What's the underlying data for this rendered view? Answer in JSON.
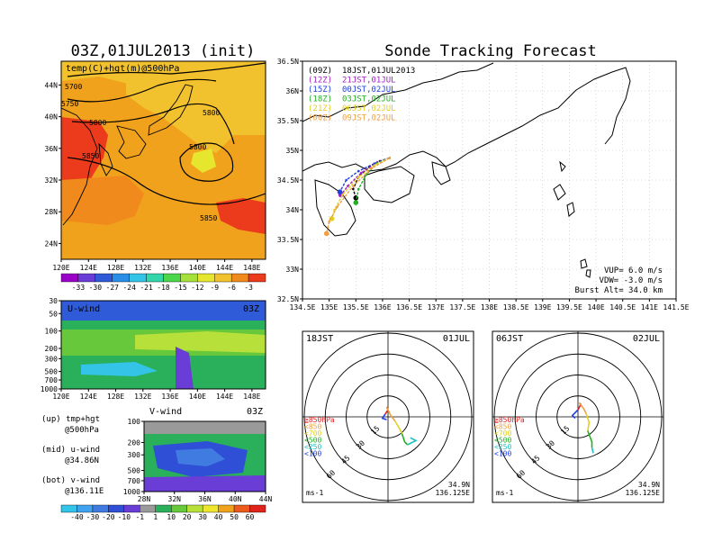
{
  "main_title": "Sonde Tracking Forecast",
  "map_panel": {
    "title": "03Z,01JUL2013 (init)",
    "subtitle": "temp(C)+hgt(m)@500hPa",
    "x_ticks": [
      "120E",
      "124E",
      "128E",
      "132E",
      "136E",
      "140E",
      "144E",
      "148E"
    ],
    "y_ticks": [
      "24N",
      "28N",
      "32N",
      "36N",
      "40N",
      "44N"
    ],
    "contour_labels": [
      "5700",
      "5750",
      "5800",
      "5800",
      "5800",
      "5850",
      "5850"
    ],
    "colorbar_labels": [
      "-33",
      "-30",
      "-27",
      "-24",
      "-21",
      "-18",
      "-15",
      "-12",
      "-9",
      "-6",
      "-3"
    ],
    "colorbar_colors": [
      "#9b00c8",
      "#6a3dd6",
      "#2f5bd8",
      "#2a8ee6",
      "#33c4e8",
      "#33d6a8",
      "#4cd64c",
      "#a6e03a",
      "#e6e62e",
      "#f2c12e",
      "#f08a1c",
      "#ec3a1c"
    ]
  },
  "uwind_panel": {
    "label": "U-wind",
    "time": "03Z",
    "y_ticks": [
      "30",
      "50",
      "100",
      "200",
      "300",
      "500",
      "700",
      "1000"
    ],
    "x_ticks": [
      "120E",
      "124E",
      "128E",
      "132E",
      "136E",
      "140E",
      "144E",
      "148E"
    ]
  },
  "vwind_panel": {
    "label": "V-wind",
    "time": "03Z",
    "y_ticks": [
      "100",
      "200",
      "300",
      "500",
      "700",
      "1000"
    ],
    "x_ticks": [
      "28N",
      "32N",
      "36N",
      "40N",
      "44N"
    ],
    "colorbar_labels": [
      "-40",
      "-30",
      "-20",
      "-10",
      "-1",
      "1",
      "10",
      "20",
      "30",
      "40",
      "50",
      "60"
    ],
    "colorbar_colors": [
      "#33c4e8",
      "#3fa3f0",
      "#3f7be0",
      "#2f4fd6",
      "#6a3dd6",
      "#9a9a9a",
      "#2ab05a",
      "#66c83a",
      "#b7e03a",
      "#eee62e",
      "#f0a21c",
      "#ec5a1c",
      "#e0241c"
    ]
  },
  "legend_notes": [
    {
      "line1": "(up) tmp+hgt",
      "line2": "@500hPa"
    },
    {
      "line1": "(mid) u-wind",
      "line2": "@34.86N"
    },
    {
      "line1": "(bot) v-wind",
      "line2": "@136.11E"
    }
  ],
  "track_panel": {
    "x_ticks": [
      "134.5E",
      "135E",
      "135.5E",
      "136E",
      "136.5E",
      "137E",
      "137.5E",
      "138E",
      "138.5E",
      "139E",
      "139.5E",
      "140E",
      "140.5E",
      "141E",
      "141.5E"
    ],
    "y_ticks": [
      "32.5N",
      "33N",
      "33.5N",
      "34N",
      "34.5N",
      "35N",
      "35.5N",
      "36N",
      "36.5N"
    ],
    "legend": [
      {
        "code": "(09Z)",
        "text": "18JST,01JUL2013",
        "color": "#000000"
      },
      {
        "code": "(12Z)",
        "text": "21JST,01JUL",
        "color": "#a020c0"
      },
      {
        "code": "(15Z)",
        "text": "00JST,02JUL",
        "color": "#2040e0"
      },
      {
        "code": "(18Z)",
        "text": "03JST,02JUL",
        "color": "#20b020"
      },
      {
        "code": "(21Z)",
        "text": "06JST,02JUL",
        "color": "#e0d020"
      },
      {
        "code": "(00Z)",
        "text": "09JST,02JUL",
        "color": "#f0a040"
      }
    ],
    "params": [
      "VUP= 6.0 m/s",
      "VDW= -3.0 m/s",
      "Burst Alt= 34.0 km"
    ]
  },
  "hodograph_left": {
    "time": "18JST",
    "date": "01JUL",
    "ring_labels": [
      "15",
      "30",
      "45",
      "60"
    ],
    "levels": [
      {
        "label": "≧850hPa",
        "color": "#e02020"
      },
      {
        "label": "<850",
        "color": "#f0a040"
      },
      {
        "label": "<700",
        "color": "#e0d020"
      },
      {
        "label": "<500",
        "color": "#20b020"
      },
      {
        "label": "<250",
        "color": "#20c0c0"
      },
      {
        "label": "<100",
        "color": "#2040e0"
      }
    ],
    "unit": "ms-1",
    "lat": "34.9N",
    "lon": "136.125E"
  },
  "hodograph_right": {
    "time": "06JST",
    "date": "02JUL",
    "ring_labels": [
      "15",
      "30",
      "45",
      "60"
    ],
    "levels": [
      {
        "label": "≧850hPa",
        "color": "#e02020"
      },
      {
        "label": "<850",
        "color": "#f0a040"
      },
      {
        "label": "<700",
        "color": "#e0d020"
      },
      {
        "label": "<500",
        "color": "#20b020"
      },
      {
        "label": "<250",
        "color": "#20c0c0"
      },
      {
        "label": "<100",
        "color": "#2040e0"
      }
    ],
    "unit": "ms-1",
    "lat": "34.9N",
    "lon": "136.125E"
  },
  "chart_data": [
    {
      "type": "heatmap",
      "title": "03Z,01JUL2013 (init)",
      "subtitle": "temp(C)+hgt(m)@500hPa",
      "xlim": [
        120,
        150
      ],
      "ylim": [
        22,
        47
      ],
      "contours_m": [
        5700,
        5750,
        5800,
        5850
      ],
      "color_levels_C": [
        -33,
        -30,
        -27,
        -24,
        -21,
        -18,
        -15,
        -12,
        -9,
        -6,
        -3
      ]
    },
    {
      "type": "heatmap",
      "title": "U-wind",
      "xlim": [
        120,
        150
      ],
      "y_pressure_hPa": [
        30,
        50,
        100,
        200,
        300,
        500,
        700,
        1000
      ]
    },
    {
      "type": "heatmap",
      "title": "V-wind",
      "xlim": [
        28,
        44
      ],
      "y_pressure_hPa": [
        100,
        200,
        300,
        500,
        700,
        1000
      ],
      "color_levels": [
        -40,
        -30,
        -20,
        -10,
        -1,
        1,
        10,
        20,
        30,
        40,
        50,
        60
      ]
    },
    {
      "type": "line",
      "title": "Sonde Tracking Forecast",
      "xlim": [
        134.5,
        141.5
      ],
      "ylim": [
        32.5,
        36.5
      ],
      "series": [
        {
          "name": "(09Z) 18JST,01JUL2013",
          "x": [
            136.13,
            135.95,
            135.75,
            135.55,
            135.45,
            135.5
          ],
          "y": [
            34.87,
            34.82,
            34.72,
            34.55,
            34.35,
            34.2
          ]
        },
        {
          "name": "(12Z) 21JST,01JUL",
          "x": [
            136.13,
            135.9,
            135.6,
            135.35,
            135.22
          ],
          "y": [
            34.87,
            34.8,
            34.62,
            34.4,
            34.25
          ]
        },
        {
          "name": "(15Z) 00JST,02JUL",
          "x": [
            136.13,
            135.85,
            135.55,
            135.32,
            135.2
          ],
          "y": [
            34.87,
            34.78,
            34.65,
            34.5,
            34.3
          ]
        },
        {
          "name": "(18Z) 03JST,02JUL",
          "x": [
            136.13,
            135.9,
            135.7,
            135.55,
            135.5
          ],
          "y": [
            34.87,
            34.78,
            34.6,
            34.35,
            34.12
          ]
        },
        {
          "name": "(21Z) 06JST,02JUL",
          "x": [
            136.13,
            135.85,
            135.55,
            135.25,
            135.1,
            135.05
          ],
          "y": [
            34.87,
            34.75,
            34.55,
            34.25,
            34.0,
            33.85
          ]
        },
        {
          "name": "(00Z) 09JST,02JUL",
          "x": [
            136.13,
            135.8,
            135.45,
            135.15,
            135.0,
            134.95
          ],
          "y": [
            34.87,
            34.7,
            34.4,
            34.05,
            33.8,
            33.6
          ]
        }
      ]
    }
  ]
}
